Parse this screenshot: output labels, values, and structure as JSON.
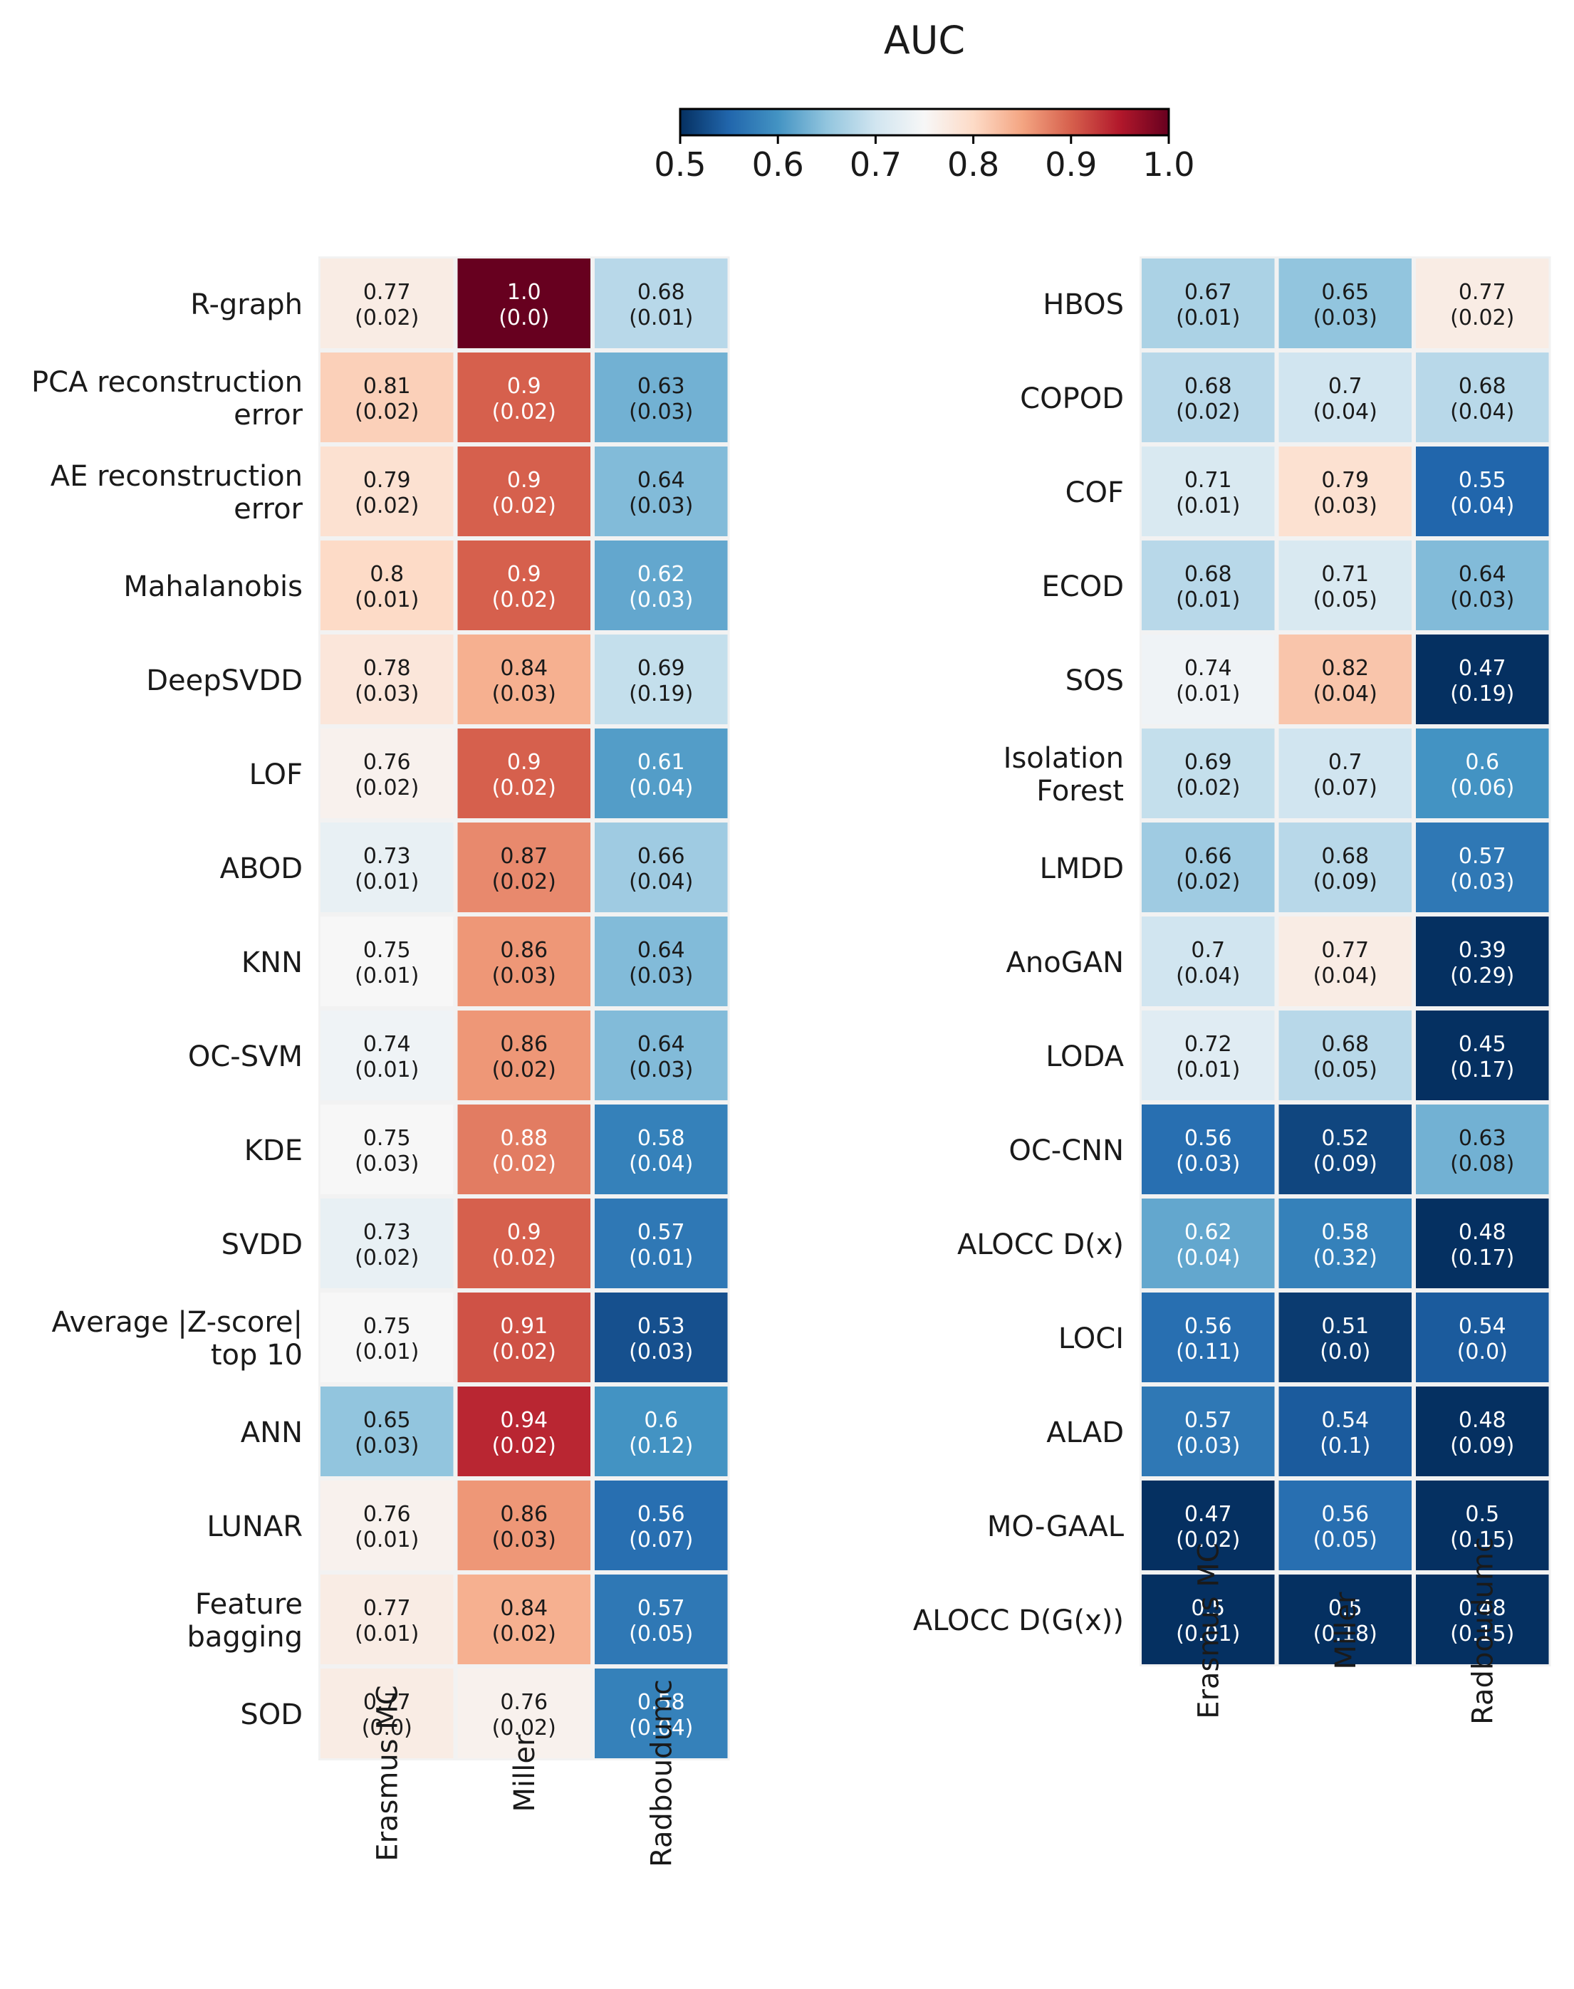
{
  "chart_data": {
    "type": "heatmap",
    "title": "AUC",
    "colorbar": {
      "label": "AUC",
      "range": [
        0.5,
        1.0
      ],
      "ticks": [
        "0.5",
        "0.6",
        "0.7",
        "0.8",
        "0.9",
        "1.0"
      ],
      "colormap": "RdBu_r",
      "stops": [
        "#053061",
        "#2166ac",
        "#4393c3",
        "#92c5de",
        "#d1e5f0",
        "#f7f7f7",
        "#fddbc7",
        "#f4a582",
        "#d6604d",
        "#b2182b",
        "#67001f"
      ]
    },
    "columns": [
      "Erasmus MC",
      "Miller",
      "Radboudumc"
    ],
    "panels": [
      {
        "name": "left",
        "rows": [
          {
            "label": [
              "R-graph"
            ],
            "values": [
              "0.77",
              "1.0",
              "0.68"
            ],
            "std": [
              "(0.02)",
              "(0.0)",
              "(0.01)"
            ]
          },
          {
            "label": [
              "PCA reconstruction",
              "error"
            ],
            "values": [
              "0.81",
              "0.9",
              "0.63"
            ],
            "std": [
              "(0.02)",
              "(0.02)",
              "(0.03)"
            ]
          },
          {
            "label": [
              "AE reconstruction",
              "error"
            ],
            "values": [
              "0.79",
              "0.9",
              "0.64"
            ],
            "std": [
              "(0.02)",
              "(0.02)",
              "(0.03)"
            ]
          },
          {
            "label": [
              "Mahalanobis"
            ],
            "values": [
              "0.8",
              "0.9",
              "0.62"
            ],
            "std": [
              "(0.01)",
              "(0.02)",
              "(0.03)"
            ]
          },
          {
            "label": [
              "DeepSVDD"
            ],
            "values": [
              "0.78",
              "0.84",
              "0.69"
            ],
            "std": [
              "(0.03)",
              "(0.03)",
              "(0.19)"
            ]
          },
          {
            "label": [
              "LOF"
            ],
            "values": [
              "0.76",
              "0.9",
              "0.61"
            ],
            "std": [
              "(0.02)",
              "(0.02)",
              "(0.04)"
            ]
          },
          {
            "label": [
              "ABOD"
            ],
            "values": [
              "0.73",
              "0.87",
              "0.66"
            ],
            "std": [
              "(0.01)",
              "(0.02)",
              "(0.04)"
            ]
          },
          {
            "label": [
              "KNN"
            ],
            "values": [
              "0.75",
              "0.86",
              "0.64"
            ],
            "std": [
              "(0.01)",
              "(0.03)",
              "(0.03)"
            ]
          },
          {
            "label": [
              "OC-SVM"
            ],
            "values": [
              "0.74",
              "0.86",
              "0.64"
            ],
            "std": [
              "(0.01)",
              "(0.02)",
              "(0.03)"
            ]
          },
          {
            "label": [
              "KDE"
            ],
            "values": [
              "0.75",
              "0.88",
              "0.58"
            ],
            "std": [
              "(0.03)",
              "(0.02)",
              "(0.04)"
            ]
          },
          {
            "label": [
              "SVDD"
            ],
            "values": [
              "0.73",
              "0.9",
              "0.57"
            ],
            "std": [
              "(0.02)",
              "(0.02)",
              "(0.01)"
            ]
          },
          {
            "label": [
              "Average |Z-score|",
              "top 10"
            ],
            "values": [
              "0.75",
              "0.91",
              "0.53"
            ],
            "std": [
              "(0.01)",
              "(0.02)",
              "(0.03)"
            ]
          },
          {
            "label": [
              "ANN"
            ],
            "values": [
              "0.65",
              "0.94",
              "0.6"
            ],
            "std": [
              "(0.03)",
              "(0.02)",
              "(0.12)"
            ]
          },
          {
            "label": [
              "LUNAR"
            ],
            "values": [
              "0.76",
              "0.86",
              "0.56"
            ],
            "std": [
              "(0.01)",
              "(0.03)",
              "(0.07)"
            ]
          },
          {
            "label": [
              "Feature",
              "bagging"
            ],
            "values": [
              "0.77",
              "0.84",
              "0.57"
            ],
            "std": [
              "(0.01)",
              "(0.02)",
              "(0.05)"
            ]
          },
          {
            "label": [
              "SOD"
            ],
            "values": [
              "0.77",
              "0.76",
              "0.58"
            ],
            "std": [
              "(0.0)",
              "(0.02)",
              "(0.04)"
            ]
          }
        ]
      },
      {
        "name": "right",
        "rows": [
          {
            "label": [
              "HBOS"
            ],
            "values": [
              "0.67",
              "0.65",
              "0.77"
            ],
            "std": [
              "(0.01)",
              "(0.03)",
              "(0.02)"
            ]
          },
          {
            "label": [
              "COPOD"
            ],
            "values": [
              "0.68",
              "0.7",
              "0.68"
            ],
            "std": [
              "(0.02)",
              "(0.04)",
              "(0.04)"
            ]
          },
          {
            "label": [
              "COF"
            ],
            "values": [
              "0.71",
              "0.79",
              "0.55"
            ],
            "std": [
              "(0.01)",
              "(0.03)",
              "(0.04)"
            ]
          },
          {
            "label": [
              "ECOD"
            ],
            "values": [
              "0.68",
              "0.71",
              "0.64"
            ],
            "std": [
              "(0.01)",
              "(0.05)",
              "(0.03)"
            ]
          },
          {
            "label": [
              "SOS"
            ],
            "values": [
              "0.74",
              "0.82",
              "0.47"
            ],
            "std": [
              "(0.01)",
              "(0.04)",
              "(0.19)"
            ]
          },
          {
            "label": [
              "Isolation",
              "Forest"
            ],
            "values": [
              "0.69",
              "0.7",
              "0.6"
            ],
            "std": [
              "(0.02)",
              "(0.07)",
              "(0.06)"
            ]
          },
          {
            "label": [
              "LMDD"
            ],
            "values": [
              "0.66",
              "0.68",
              "0.57"
            ],
            "std": [
              "(0.02)",
              "(0.09)",
              "(0.03)"
            ]
          },
          {
            "label": [
              "AnoGAN"
            ],
            "values": [
              "0.7",
              "0.77",
              "0.39"
            ],
            "std": [
              "(0.04)",
              "(0.04)",
              "(0.29)"
            ]
          },
          {
            "label": [
              "LODA"
            ],
            "values": [
              "0.72",
              "0.68",
              "0.45"
            ],
            "std": [
              "(0.01)",
              "(0.05)",
              "(0.17)"
            ]
          },
          {
            "label": [
              "OC-CNN"
            ],
            "values": [
              "0.56",
              "0.52",
              "0.63"
            ],
            "std": [
              "(0.03)",
              "(0.09)",
              "(0.08)"
            ]
          },
          {
            "label": [
              "ALOCC D(x)"
            ],
            "values": [
              "0.62",
              "0.58",
              "0.48"
            ],
            "std": [
              "(0.04)",
              "(0.32)",
              "(0.17)"
            ]
          },
          {
            "label": [
              "LOCI"
            ],
            "values": [
              "0.56",
              "0.51",
              "0.54"
            ],
            "std": [
              "(0.11)",
              "(0.0)",
              "(0.0)"
            ]
          },
          {
            "label": [
              "ALAD"
            ],
            "values": [
              "0.57",
              "0.54",
              "0.48"
            ],
            "std": [
              "(0.03)",
              "(0.1)",
              "(0.09)"
            ]
          },
          {
            "label": [
              "MO-GAAL"
            ],
            "values": [
              "0.47",
              "0.56",
              "0.5"
            ],
            "std": [
              "(0.02)",
              "(0.05)",
              "(0.15)"
            ]
          },
          {
            "label": [
              "ALOCC D(G(x))"
            ],
            "values": [
              "0.5",
              "0.5",
              "0.48"
            ],
            "std": [
              "(0.01)",
              "(0.18)",
              "(0.15)"
            ]
          }
        ]
      }
    ]
  }
}
